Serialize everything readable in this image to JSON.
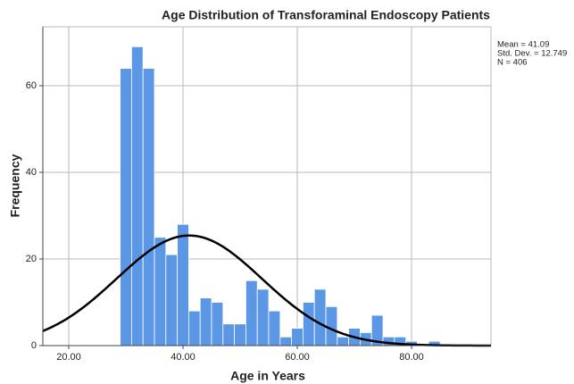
{
  "chart_data": {
    "type": "histogram",
    "title": "Age Distribution of Transforaminal Endoscopy Patients",
    "x_label": "Age in Years",
    "y_label": "Frequency",
    "bins": [
      29,
      31,
      33,
      35,
      37,
      39,
      41,
      43,
      45,
      47,
      49,
      51,
      53,
      55,
      57,
      59,
      61,
      63,
      65,
      67,
      69,
      71,
      73,
      75,
      77,
      79,
      81,
      83,
      85
    ],
    "values": [
      64,
      69,
      64,
      25,
      21,
      28,
      8,
      11,
      10,
      5,
      5,
      15,
      13,
      8,
      2,
      4,
      10,
      13,
      9,
      2,
      4,
      3,
      7,
      2,
      2,
      1,
      0,
      1
    ],
    "color": "#5b97e5",
    "xlim": [
      15.47,
      93.9
    ],
    "ylim": [
      0,
      73.6
    ],
    "xticks": [
      {
        "value": 20,
        "label": "20.00"
      },
      {
        "value": 40,
        "label": "40.00"
      },
      {
        "value": 60,
        "label": "60.00"
      },
      {
        "value": 80,
        "label": "80.00"
      }
    ],
    "yticks": [
      0,
      20,
      40,
      60
    ],
    "grid": true,
    "stats": [
      {
        "label": "Mean = 41.09",
        "value": 41.09
      },
      {
        "label": "Std. Dev. = 12.749",
        "value": 12.749
      },
      {
        "label": "N = 406",
        "value": 406
      }
    ]
  }
}
